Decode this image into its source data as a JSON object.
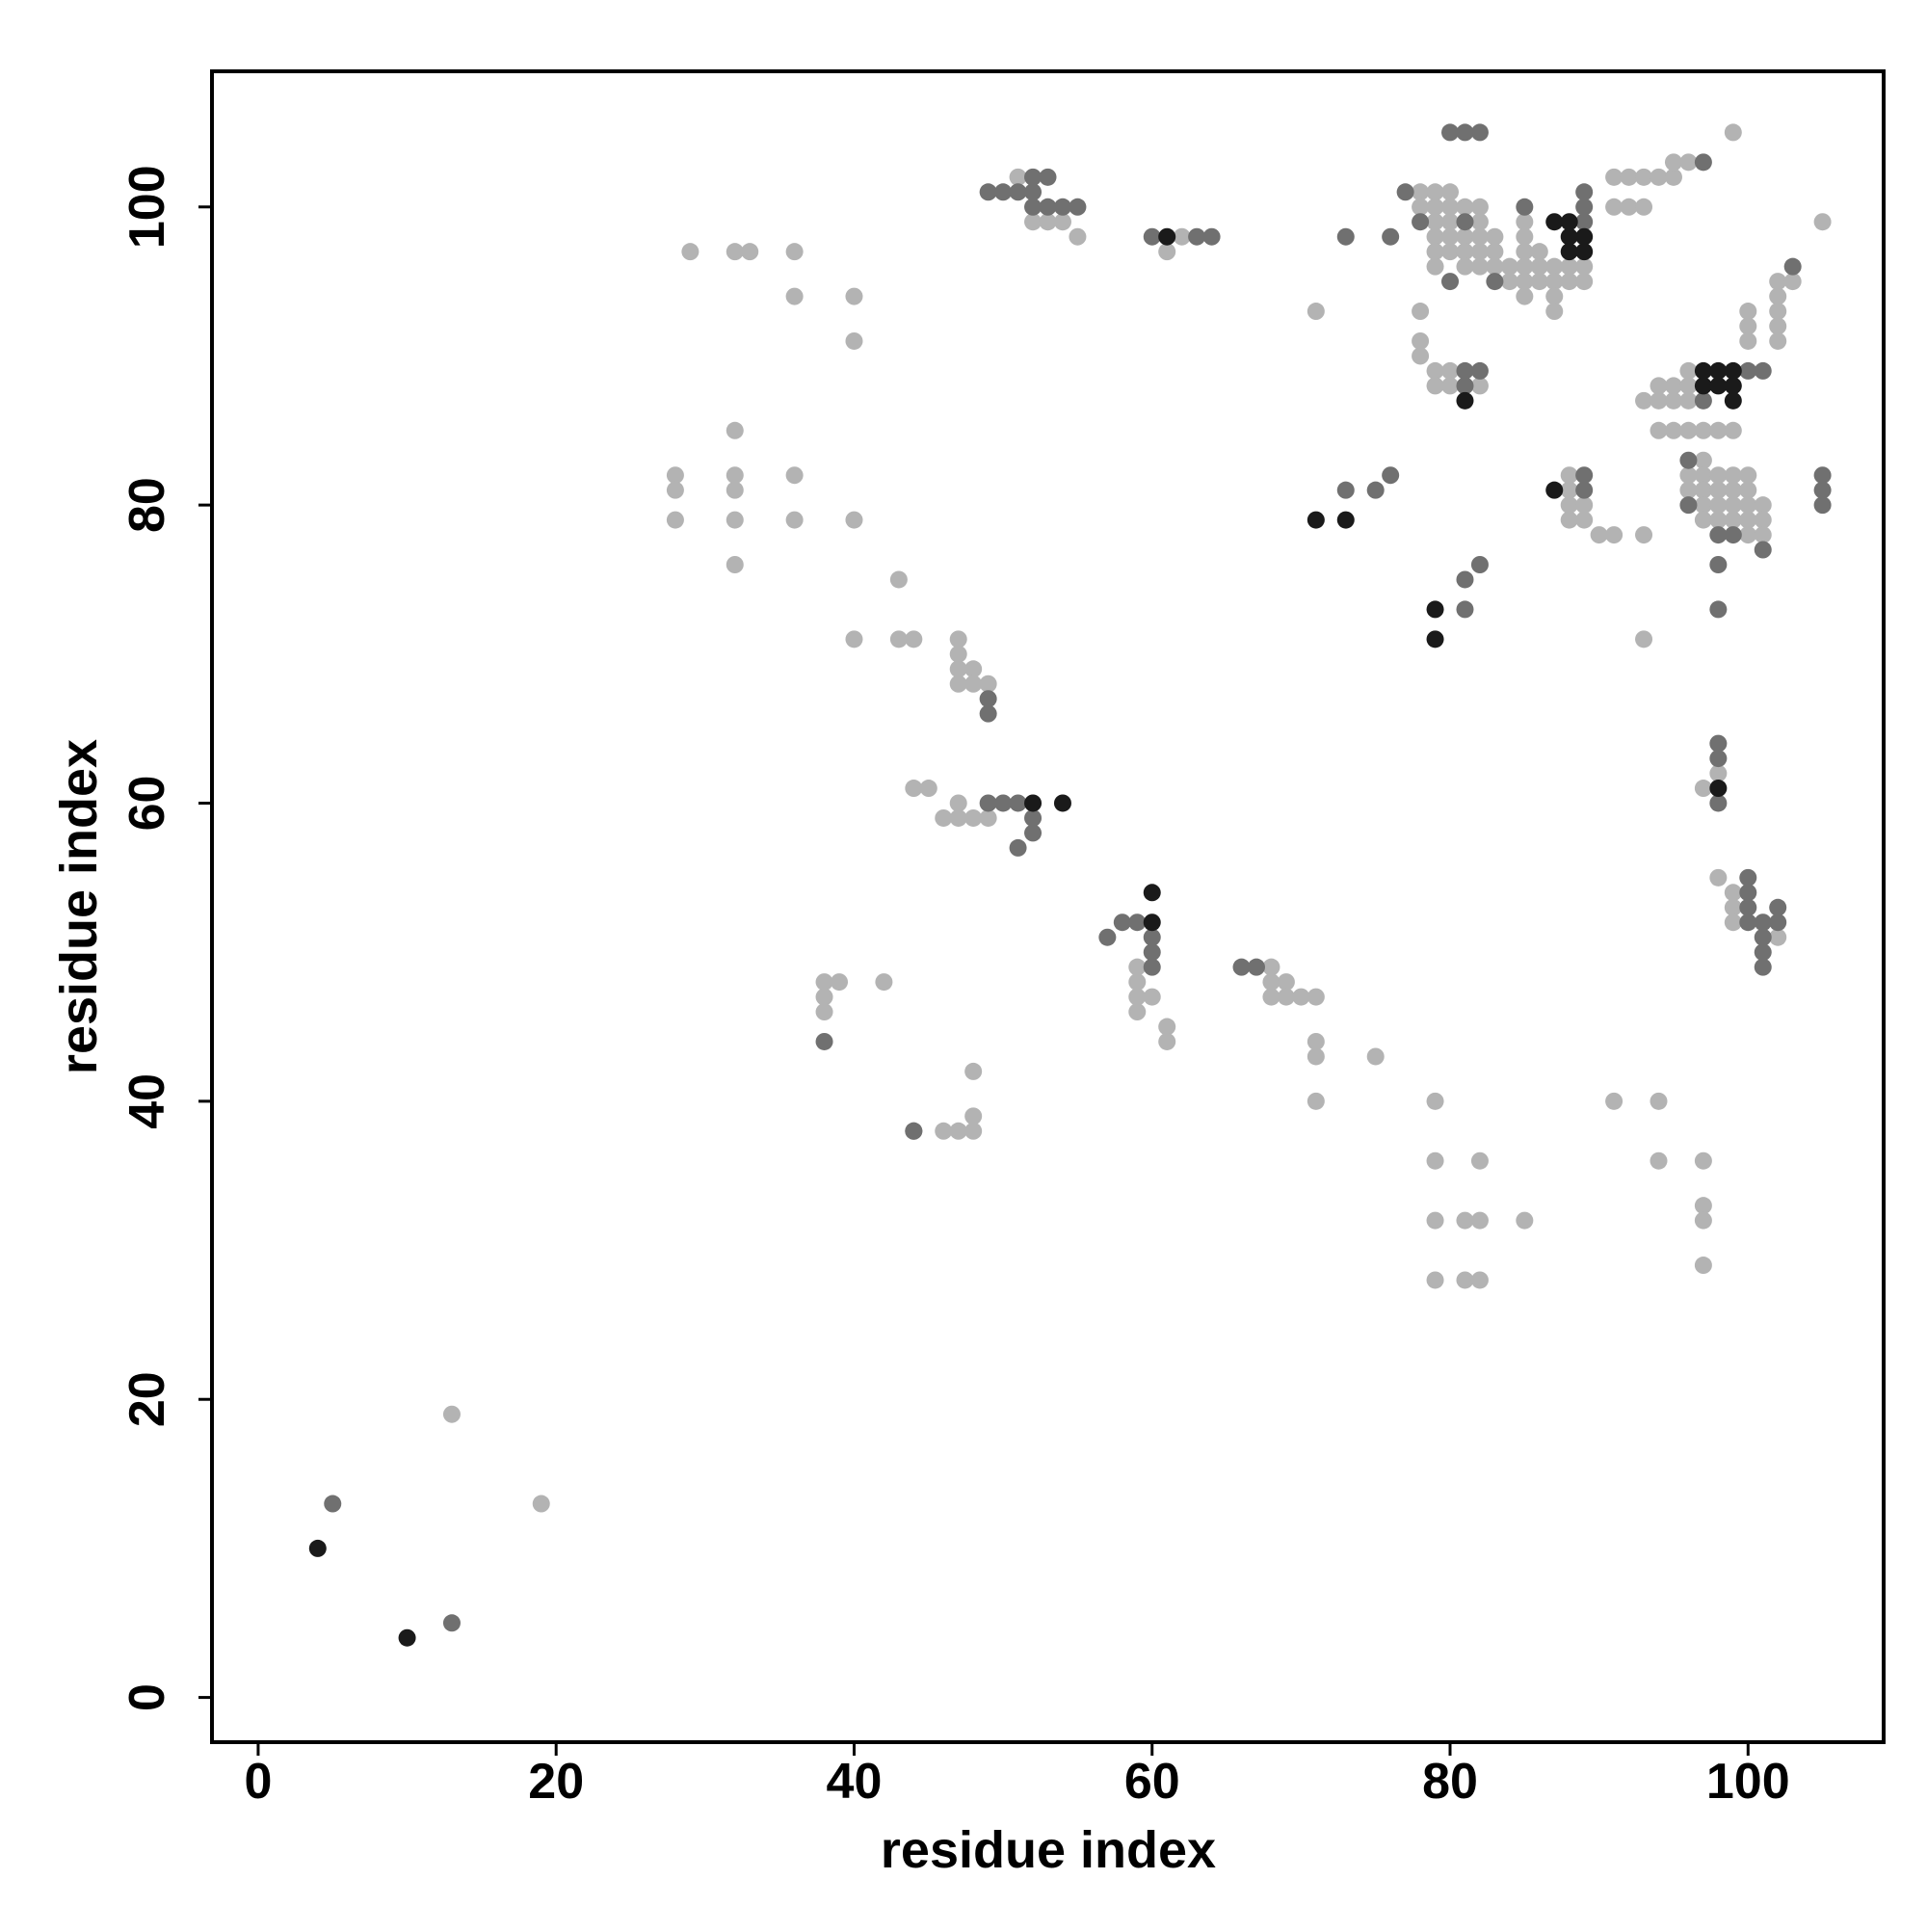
{
  "chart_data": {
    "type": "scatter",
    "x_label": "residue index",
    "y_label": "residue index",
    "xlim": [
      -3.1,
      109.1
    ],
    "ylim": [
      -3,
      109.1
    ],
    "xticks": [
      0,
      20,
      40,
      60,
      80,
      100
    ],
    "yticks": [
      0,
      20,
      40,
      60,
      80,
      100
    ],
    "series": [
      {
        "color": "#b3b3b3",
        "x": [
          13,
          19,
          28,
          28,
          28,
          29,
          32,
          33,
          32,
          32,
          32,
          32,
          32,
          36,
          36,
          36,
          36,
          40,
          40,
          40,
          40,
          43,
          43,
          44,
          47,
          47,
          47,
          47,
          48,
          48,
          49,
          44,
          45,
          46,
          47,
          47,
          48,
          49,
          38,
          39,
          38,
          38,
          42,
          46,
          47,
          48,
          48,
          48,
          51,
          52,
          53,
          54,
          55,
          59,
          59,
          59,
          59,
          60,
          61,
          61,
          61,
          62,
          68,
          68,
          69,
          68,
          69,
          70,
          71,
          71,
          71,
          71,
          75,
          71,
          78,
          79,
          80,
          78,
          79,
          80,
          81,
          82,
          79,
          80,
          82,
          79,
          80,
          81,
          82,
          83,
          79,
          80,
          81,
          82,
          83,
          79,
          81,
          82,
          83,
          85,
          85,
          85,
          85,
          85,
          85,
          86,
          86,
          86,
          87,
          87,
          87,
          87,
          88,
          89,
          88,
          89,
          84,
          84,
          78,
          78,
          78,
          79,
          80,
          79,
          80,
          82,
          79,
          79,
          82,
          79,
          81,
          82,
          85,
          79,
          81,
          82,
          88,
          88,
          88,
          88,
          89,
          89,
          90,
          91,
          93,
          93,
          91,
          94,
          94,
          97,
          97,
          97,
          97,
          91,
          92,
          93,
          94,
          95,
          95,
          96,
          91,
          92,
          93,
          99,
          105,
          102,
          103,
          102,
          102,
          102,
          102,
          100,
          100,
          100,
          93,
          94,
          95,
          96,
          94,
          95,
          96,
          96,
          94,
          95,
          96,
          97,
          98,
          99,
          96,
          96,
          97,
          97,
          97,
          97,
          97,
          98,
          98,
          98,
          98,
          99,
          99,
          99,
          99,
          100,
          100,
          100,
          100,
          100,
          101,
          101,
          101,
          98,
          97,
          98,
          99,
          99,
          99,
          102
        ],
        "y": [
          19,
          13,
          82,
          81,
          79,
          97,
          97,
          97,
          85,
          82,
          81,
          79,
          76,
          97,
          94,
          82,
          79,
          94,
          91,
          79,
          71,
          75,
          71,
          71,
          71,
          70,
          69,
          68,
          69,
          68,
          68,
          61,
          61,
          59,
          60,
          59,
          59,
          59,
          48,
          48,
          47,
          46,
          48,
          38,
          38,
          38,
          39,
          42,
          102,
          99,
          99,
          99,
          98,
          49,
          48,
          47,
          46,
          47,
          45,
          44,
          97,
          98,
          49,
          48,
          48,
          47,
          47,
          47,
          47,
          44,
          43,
          40,
          43,
          93,
          101,
          101,
          101,
          100,
          100,
          100,
          100,
          100,
          99,
          99,
          99,
          98,
          98,
          98,
          98,
          98,
          97,
          97,
          97,
          97,
          97,
          96,
          96,
          96,
          96,
          99,
          98,
          97,
          96,
          95,
          94,
          97,
          96,
          95,
          96,
          95,
          94,
          93,
          96,
          96,
          95,
          95,
          96,
          95,
          93,
          91,
          90,
          89,
          89,
          88,
          88,
          88,
          40,
          36,
          36,
          32,
          32,
          32,
          32,
          28,
          28,
          28,
          82,
          81,
          80,
          79,
          80,
          79,
          78,
          78,
          78,
          71,
          40,
          40,
          36,
          36,
          33,
          32,
          29,
          102,
          102,
          102,
          102,
          102,
          103,
          103,
          100,
          100,
          100,
          105,
          99,
          95,
          95,
          94,
          93,
          92,
          91,
          93,
          92,
          91,
          87,
          87,
          87,
          87,
          88,
          88,
          88,
          89,
          85,
          85,
          85,
          85,
          85,
          85,
          82,
          81,
          83,
          82,
          81,
          80,
          79,
          82,
          81,
          80,
          79,
          82,
          81,
          80,
          79,
          82,
          81,
          80,
          79,
          78,
          80,
          79,
          78,
          62,
          61,
          55,
          54,
          53,
          52,
          51
        ]
      },
      {
        "color": "#707070",
        "x": [
          5,
          13,
          49,
          49,
          44,
          49,
          50,
          51,
          52,
          52,
          51,
          38,
          44,
          49,
          50,
          51,
          52,
          52,
          53,
          52,
          53,
          54,
          55,
          57,
          58,
          59,
          60,
          60,
          60,
          60,
          63,
          64,
          66,
          67,
          73,
          75,
          76,
          73,
          76,
          77,
          78,
          81,
          80,
          81,
          82,
          80,
          83,
          85,
          89,
          89,
          89,
          81,
          82,
          81,
          81,
          81,
          82,
          89,
          89,
          97,
          103,
          100,
          101,
          97,
          96,
          96,
          98,
          99,
          101,
          98,
          98,
          105,
          105,
          105,
          98,
          98,
          98,
          100,
          100,
          100,
          100,
          101,
          101,
          101,
          101,
          102,
          102
        ],
        "y": [
          13,
          5,
          67,
          66,
          38,
          60,
          60,
          60,
          59,
          58,
          57,
          44,
          38,
          101,
          101,
          101,
          102,
          101,
          102,
          100,
          100,
          100,
          100,
          51,
          52,
          52,
          51,
          50,
          49,
          98,
          98,
          98,
          49,
          49,
          81,
          81,
          82,
          98,
          98,
          101,
          99,
          99,
          105,
          105,
          105,
          95,
          95,
          100,
          99,
          100,
          101,
          89,
          89,
          88,
          75,
          73,
          76,
          82,
          81,
          103,
          96,
          89,
          89,
          87,
          83,
          80,
          78,
          78,
          77,
          76,
          73,
          82,
          81,
          80,
          64,
          63,
          60,
          55,
          54,
          53,
          52,
          52,
          51,
          50,
          49,
          53,
          52
        ]
      },
      {
        "color": "#1a1a1a",
        "x": [
          4,
          10,
          52,
          54,
          60,
          60,
          61,
          71,
          73,
          79,
          79,
          81,
          87,
          88,
          88,
          88,
          89,
          89,
          87,
          97,
          98,
          99,
          97,
          98,
          99,
          99,
          98
        ],
        "y": [
          10,
          4,
          60,
          60,
          52,
          54,
          98,
          79,
          79,
          73,
          71,
          87,
          99,
          99,
          98,
          97,
          97,
          98,
          81,
          89,
          89,
          89,
          88,
          88,
          88,
          87,
          61
        ]
      }
    ]
  }
}
